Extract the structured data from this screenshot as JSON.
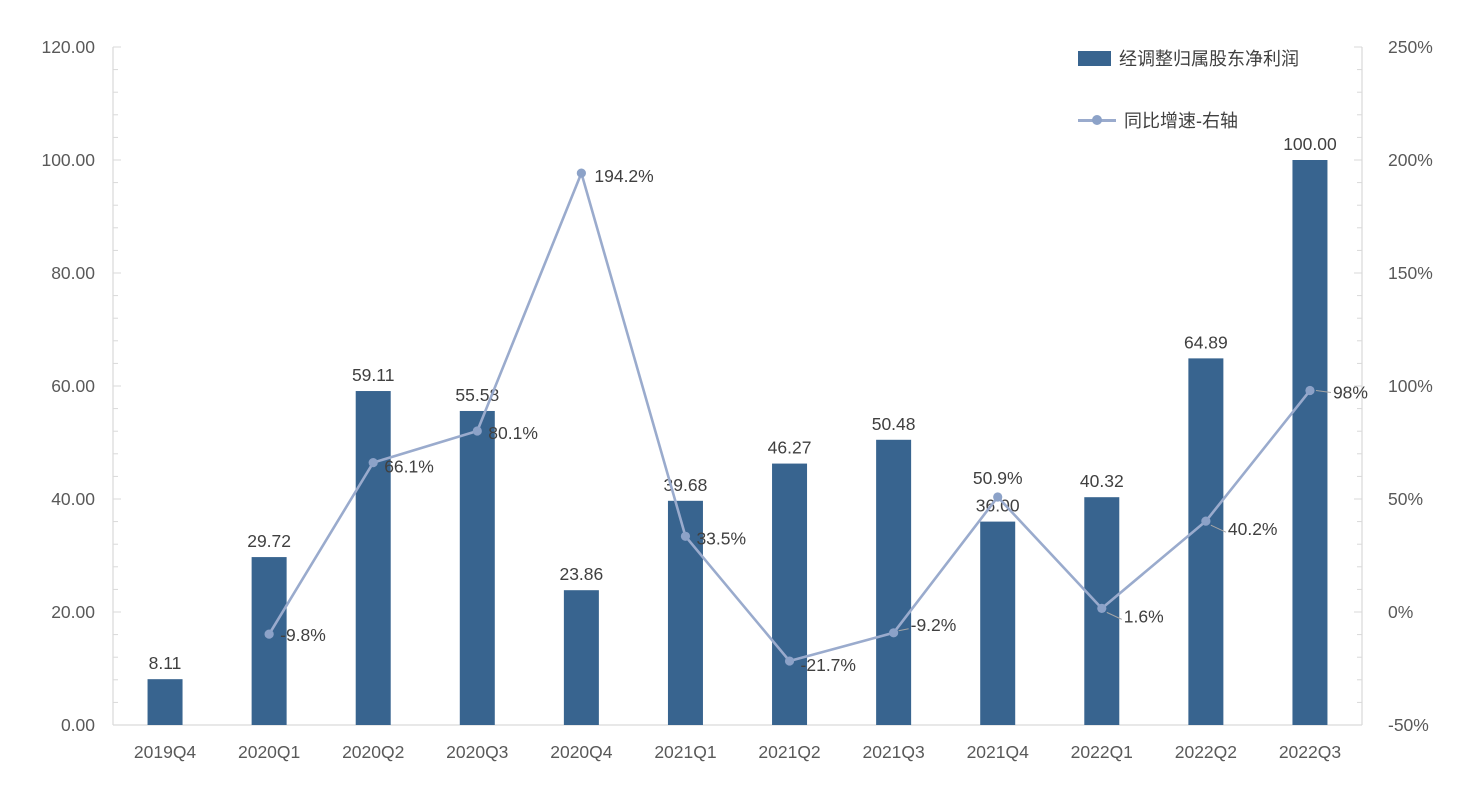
{
  "page": {
    "background": "#ffffff"
  },
  "chart_data": {
    "type": "combo_bar_line",
    "title": "",
    "categories": [
      "2019Q4",
      "2020Q1",
      "2020Q2",
      "2020Q3",
      "2020Q4",
      "2021Q1",
      "2021Q2",
      "2021Q3",
      "2021Q4",
      "2022Q1",
      "2022Q2",
      "2022Q3"
    ],
    "series": [
      {
        "name": "经调整归属股东净利润",
        "type": "bar",
        "axis": "left",
        "values": [
          8.11,
          29.72,
          59.11,
          55.58,
          23.86,
          39.68,
          46.27,
          50.48,
          36.0,
          40.32,
          64.89,
          100.0
        ],
        "labels": [
          "8.11",
          "29.72",
          "59.11",
          "55.58",
          "23.86",
          "39.68",
          "46.27",
          "50.48",
          "36.00",
          "40.32",
          "64.89",
          "100.00"
        ]
      },
      {
        "name": "同比增速-右轴",
        "type": "line",
        "axis": "right",
        "values": [
          null,
          -9.8,
          66.1,
          80.1,
          194.2,
          33.5,
          -21.7,
          -9.2,
          50.9,
          1.6,
          40.2,
          98
        ],
        "labels": [
          null,
          "-9.8%",
          "66.1%",
          "80.1%",
          "194.2%",
          "33.5%",
          "-21.7%",
          "-9.2%",
          "50.9%",
          "1.6%",
          "40.2%",
          "98%"
        ]
      }
    ],
    "left_axis": {
      "min": 0,
      "max": 120,
      "tick_labels": [
        "120.00",
        "100.00",
        "80.00",
        "60.00",
        "40.00",
        "20.00",
        "0.00"
      ],
      "tick_values": [
        120,
        100,
        80,
        60,
        40,
        20,
        0
      ],
      "minor_tick_step": 4
    },
    "right_axis": {
      "min": -50,
      "max": 250,
      "tick_labels": [
        "250%",
        "200%",
        "150%",
        "100%",
        "50%",
        "0%",
        "-50%"
      ],
      "tick_values": [
        250,
        200,
        150,
        100,
        50,
        0,
        -50
      ],
      "minor_tick_step": 10
    },
    "legend": {
      "position": "top-right",
      "items": [
        "经调整归属股东净利润",
        "同比增速-右轴"
      ]
    },
    "grid": false,
    "colors": {
      "bar": "#38648f",
      "line": "#9aabcd",
      "marker": "#8ca2c8",
      "data_label": "#404040",
      "axis_label": "#595959",
      "axis_line": "#d9d9d9",
      "leader_line": "#a6a6a6"
    }
  }
}
